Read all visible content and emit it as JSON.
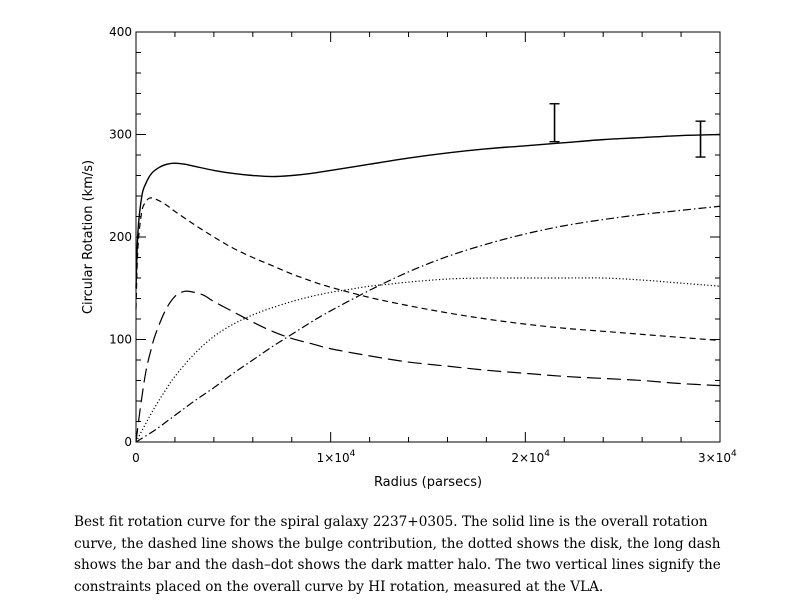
{
  "chart_data": {
    "type": "line",
    "title": "",
    "xlabel": "Radius (parsecs)",
    "ylabel": "Circular Rotation (km/s)",
    "xlim": [
      0,
      30000
    ],
    "ylim": [
      0,
      400
    ],
    "x_ticks": [
      {
        "value": 0,
        "label": "0"
      },
      {
        "value": 10000,
        "label": "1×10",
        "exp": "4"
      },
      {
        "value": 20000,
        "label": "2×10",
        "exp": "4"
      },
      {
        "value": 30000,
        "label": "3×10",
        "exp": "4"
      }
    ],
    "y_ticks": [
      {
        "value": 0,
        "label": "0"
      },
      {
        "value": 100,
        "label": "100"
      },
      {
        "value": 200,
        "label": "200"
      },
      {
        "value": 300,
        "label": "300"
      },
      {
        "value": 400,
        "label": "400"
      }
    ],
    "grid": false,
    "series": [
      {
        "style": "solid",
        "x": [
          0,
          100,
          300,
          500,
          800,
          1200,
          1600,
          2000,
          2500,
          3000,
          4000,
          5000,
          6000,
          7000,
          8000,
          9000,
          10000,
          12000,
          14000,
          16000,
          18000,
          20000,
          22000,
          24000,
          26000,
          28000,
          30000
        ],
        "y": [
          150,
          205,
          240,
          252,
          262,
          268,
          271,
          272,
          271,
          269,
          265,
          262,
          260,
          259,
          260,
          262,
          265,
          271,
          277,
          282,
          286,
          289,
          292,
          295,
          297,
          299,
          300
        ]
      },
      {
        "style": "dashed",
        "x": [
          0,
          100,
          300,
          500,
          700,
          1000,
          1500,
          2000,
          3000,
          4000,
          5000,
          6000,
          7000,
          8000,
          9000,
          10000,
          12000,
          14000,
          16000,
          18000,
          20000,
          22000,
          24000,
          26000,
          28000,
          30000
        ],
        "y": [
          130,
          190,
          225,
          234,
          238,
          237,
          232,
          225,
          212,
          200,
          189,
          180,
          172,
          164,
          157,
          151,
          141,
          133,
          126,
          120,
          115,
          111,
          108,
          105,
          102,
          99
        ]
      },
      {
        "style": "dotted",
        "x": [
          0,
          500,
          1000,
          1500,
          2000,
          3000,
          4000,
          5000,
          6000,
          7000,
          8000,
          9000,
          10000,
          11000,
          12000,
          13000,
          14000,
          16000,
          18000,
          19000,
          20000,
          22000,
          24000,
          26000,
          28000,
          30000
        ],
        "y": [
          0,
          18,
          35,
          50,
          64,
          86,
          103,
          115,
          124,
          131,
          137,
          142,
          146,
          149,
          152,
          154,
          156,
          159,
          160,
          160,
          160,
          160,
          160,
          158,
          155,
          152
        ]
      },
      {
        "style": "longdash",
        "x": [
          0,
          200,
          500,
          800,
          1000,
          1500,
          2000,
          2500,
          3000,
          3500,
          4000,
          5000,
          6000,
          7000,
          8000,
          9000,
          10000,
          12000,
          14000,
          16000,
          18000,
          20000,
          22000,
          24000,
          26000,
          28000,
          30000
        ],
        "y": [
          0,
          30,
          68,
          92,
          105,
          128,
          142,
          147,
          146,
          143,
          137,
          127,
          117,
          108,
          101,
          96,
          91,
          84,
          78,
          74,
          70,
          67,
          64,
          62,
          60,
          57,
          55
        ]
      },
      {
        "style": "dashdot",
        "x": [
          0,
          1000,
          2000,
          3000,
          4000,
          5000,
          6000,
          7000,
          8000,
          9000,
          10000,
          12000,
          14000,
          16000,
          18000,
          20000,
          22000,
          24000,
          26000,
          28000,
          30000
        ],
        "y": [
          0,
          12,
          26,
          40,
          53,
          67,
          80,
          93,
          105,
          117,
          128,
          148,
          166,
          181,
          193,
          203,
          211,
          217,
          222,
          226,
          230
        ]
      }
    ],
    "error_bars": [
      {
        "x": 21500,
        "y_low": 293,
        "y_high": 330
      },
      {
        "x": 29000,
        "y_low": 278,
        "y_high": 313
      }
    ]
  },
  "caption": "Best fit rotation curve for the spiral galaxy 2237+0305. The solid line is the overall rotation curve, the dashed line shows the bulge contribution, the dotted shows the disk, the long dash shows the bar and the dash–dot shows the dark matter halo. The two vertical lines signify the constraints placed on the overall curve by HI rotation, measured at the VLA."
}
